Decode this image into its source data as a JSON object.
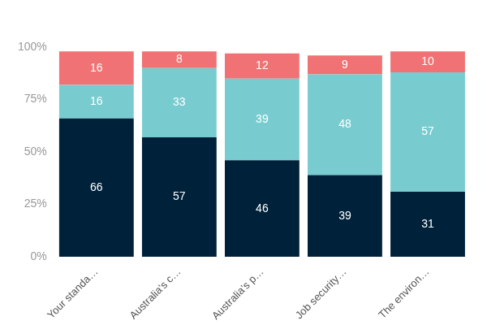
{
  "chart_data": {
    "type": "bar",
    "stacked": true,
    "data_labels": true,
    "grid": false,
    "categories": [
      "Your standa…",
      "Australia's c…",
      "Australia's p…",
      "Job security…",
      "The environ…"
    ],
    "series": [
      {
        "color": "#00213a",
        "values": [
          66,
          57,
          46,
          39,
          31
        ]
      },
      {
        "color": "#78ccd0",
        "values": [
          16,
          33,
          39,
          48,
          57
        ]
      },
      {
        "color": "#f07274",
        "values": [
          16,
          8,
          12,
          9,
          10
        ]
      }
    ],
    "ylim": [
      0,
      100
    ],
    "yticks": [
      {
        "value": 0,
        "label": "0%"
      },
      {
        "value": 25,
        "label": "25%"
      },
      {
        "value": 50,
        "label": "50%"
      },
      {
        "value": 75,
        "label": "75%"
      },
      {
        "value": 100,
        "label": "100%"
      }
    ]
  }
}
